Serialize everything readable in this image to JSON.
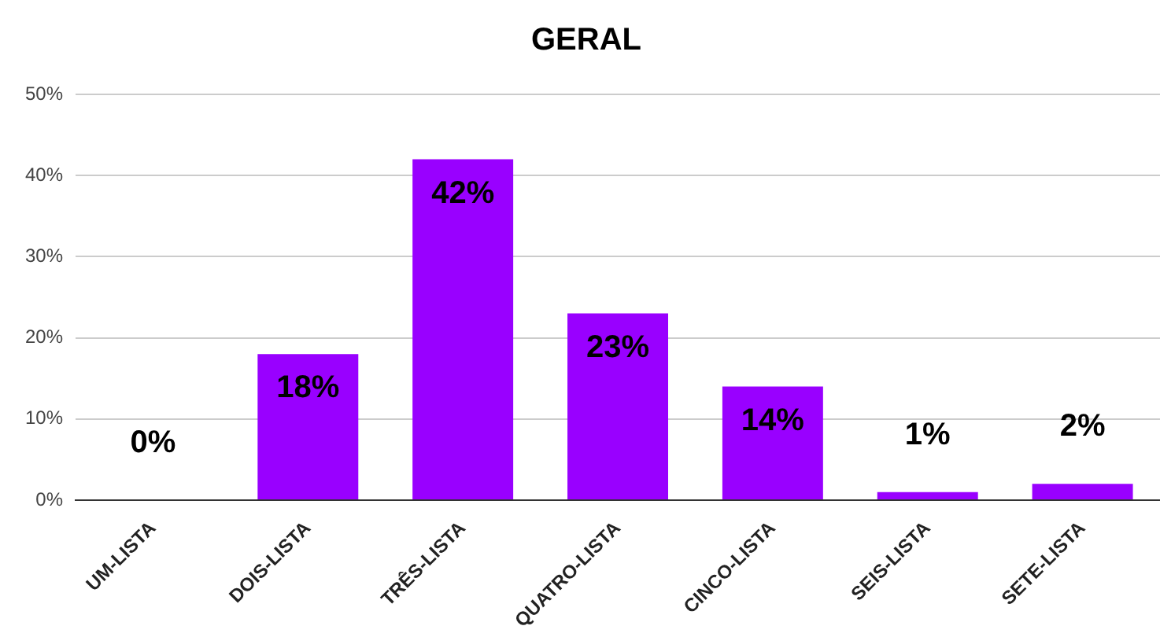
{
  "chart_data": {
    "type": "bar",
    "title": "GERAL",
    "categories": [
      "UM-LISTA",
      "DOIS-LISTA",
      "TRÊS-LISTA",
      "QUATRO-LISTA",
      "CINCO-LISTA",
      "SEIS-LISTA",
      "SETE-LISTA"
    ],
    "values": [
      0,
      18,
      42,
      23,
      14,
      1,
      2
    ],
    "value_labels": [
      "0%",
      "18%",
      "42%",
      "23%",
      "14%",
      "1%",
      "2%"
    ],
    "color": "#9900ff",
    "ylim": [
      0,
      50
    ],
    "yticks": [
      {
        "value": 0,
        "label": "0%"
      },
      {
        "value": 10,
        "label": "10%"
      },
      {
        "value": 20,
        "label": "20%"
      },
      {
        "value": 30,
        "label": "30%"
      },
      {
        "value": 40,
        "label": "40%"
      },
      {
        "value": 50,
        "label": "50%"
      }
    ],
    "grid": "y",
    "legend": false
  }
}
